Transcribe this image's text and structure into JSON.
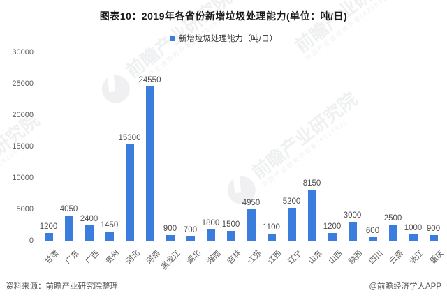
{
  "title": "图表10：2019年各省份新增垃圾处理能力(单位：吨/日)",
  "legend": {
    "label": "新增垃圾处理能力（吨/日）",
    "swatch_color": "#3B7DDD"
  },
  "watermark": {
    "text": "前瞻产业研究院",
    "subtext": "中国产业咨询领导者(839599)"
  },
  "footer": {
    "source": "资料来源：前瞻产业研究院整理",
    "credit": "@前瞻经济学人APP"
  },
  "chart_data": {
    "type": "bar",
    "title": "图表10：2019年各省份新增垃圾处理能力(单位：吨/日)",
    "legend": [
      "新增垃圾处理能力（吨/日）"
    ],
    "legend_position": "top",
    "categories": [
      "甘肃",
      "广东",
      "广西",
      "贵州",
      "河北",
      "河南",
      "黑龙江",
      "湖北",
      "湖南",
      "吉林",
      "江苏",
      "江西",
      "辽宁",
      "山东",
      "山西",
      "陕西",
      "四川",
      "云南",
      "浙江",
      "重庆"
    ],
    "values": [
      1200,
      4050,
      2400,
      1450,
      15300,
      24550,
      900,
      700,
      1800,
      1500,
      4950,
      1100,
      5200,
      8150,
      1200,
      3000,
      600,
      2500,
      1000,
      900
    ],
    "xlabel": "",
    "ylabel": "",
    "ylim": [
      0,
      30000
    ],
    "yticks": [
      0,
      5000,
      10000,
      15000,
      20000,
      25000,
      30000
    ],
    "grid": false,
    "data_labels": true,
    "bar_color": "#3B7DDD",
    "value_label_color": "#4d4d4d",
    "axis_label_color": "#595959"
  }
}
